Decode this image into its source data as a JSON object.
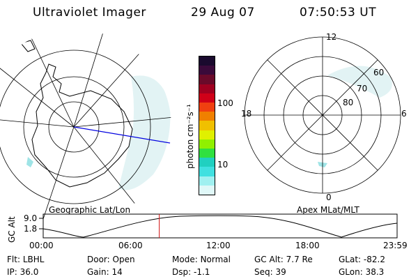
{
  "header": {
    "title": "Ultraviolet Imager",
    "date": "29 Aug 07",
    "time": "07:50:53 UT"
  },
  "left_map": {
    "caption": "Geographic Lat/Lon"
  },
  "right_map": {
    "caption": "Apex MLat/MLT",
    "mlt_labels": {
      "top": "12",
      "bottom": "0",
      "left": "18",
      "right": "6"
    },
    "lat_labels": [
      "60",
      "70",
      "80"
    ]
  },
  "colorbar": {
    "label": "photon cm⁻²s⁻¹",
    "ticks": [
      "100",
      "10"
    ],
    "colors": [
      "#1a0a2e",
      "#3a0a3a",
      "#6a0a2a",
      "#a00020",
      "#d00018",
      "#f04010",
      "#f08000",
      "#f0c000",
      "#e0f000",
      "#90f000",
      "#30e040",
      "#20d0c0",
      "#40e0e0",
      "#a0f0f0",
      "#e0f8f8"
    ]
  },
  "altitude_plot": {
    "ylabel": "GC Alt",
    "yticks": [
      "9.0",
      "1.8"
    ],
    "xticks": [
      "00:00",
      "06:00",
      "12:00",
      "18:00",
      "23:59"
    ],
    "current_time_fraction": 0.328
  },
  "footer": {
    "row1": [
      {
        "label": "Flt:",
        "value": "LBHL"
      },
      {
        "label": "Door:",
        "value": "Open"
      },
      {
        "label": "Mode:",
        "value": "Normal"
      },
      {
        "label": "GC Alt:",
        "value": "7.7 Re"
      },
      {
        "label": "GLat:",
        "value": "-82.2"
      }
    ],
    "row2": [
      {
        "label": "IP:",
        "value": "36.0"
      },
      {
        "label": "Gain:",
        "value": "14"
      },
      {
        "label": "Dsp:",
        "value": "-1.1"
      },
      {
        "label": "Seq:",
        "value": "39"
      },
      {
        "label": "GLon:",
        "value": "38.3"
      }
    ]
  }
}
